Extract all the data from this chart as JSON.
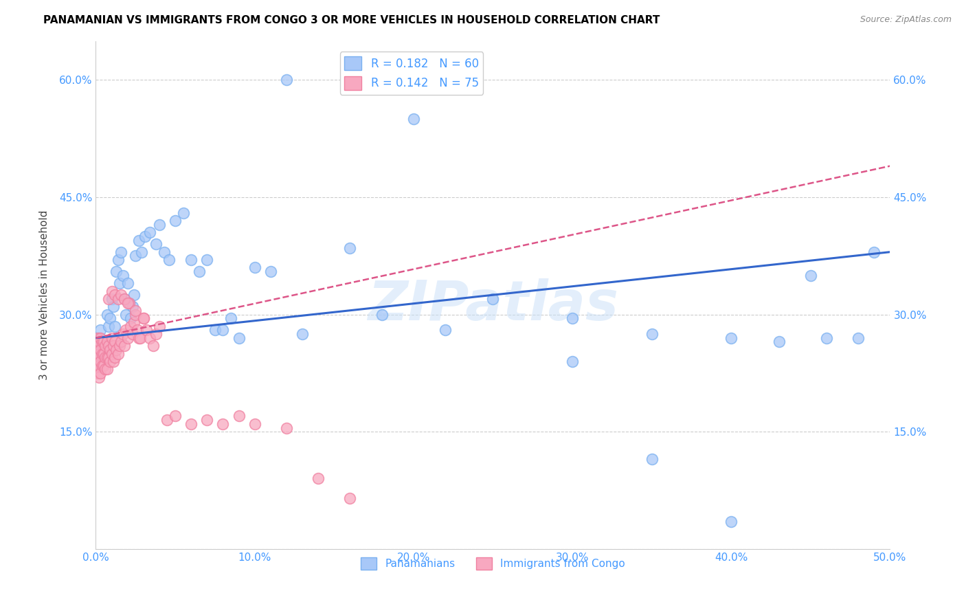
{
  "title": "PANAMANIAN VS IMMIGRANTS FROM CONGO 3 OR MORE VEHICLES IN HOUSEHOLD CORRELATION CHART",
  "source": "Source: ZipAtlas.com",
  "ylabel": "3 or more Vehicles in Household",
  "xlim": [
    0.0,
    0.5
  ],
  "ylim": [
    0.0,
    0.65
  ],
  "xticks": [
    0.0,
    0.1,
    0.2,
    0.3,
    0.4,
    0.5
  ],
  "xticklabels": [
    "0.0%",
    "10.0%",
    "20.0%",
    "30.0%",
    "40.0%",
    "50.0%"
  ],
  "yticks": [
    0.0,
    0.15,
    0.3,
    0.45,
    0.6
  ],
  "yticklabels": [
    "",
    "15.0%",
    "30.0%",
    "45.0%",
    "60.0%"
  ],
  "series1_color": "#a8c8f8",
  "series2_color": "#f8a8c0",
  "series1_edge": "#7ab0f0",
  "series2_edge": "#f080a0",
  "trendline1_color": "#3366cc",
  "trendline2_color": "#dd5588",
  "watermark": "ZIPatlas",
  "watermark_color": "#c8dff8",
  "background_color": "#ffffff",
  "grid_color": "#cccccc",
  "axis_color": "#4499ff",
  "title_color": "#000000",
  "source_color": "#888888",
  "trendline1_start_y": 0.27,
  "trendline1_end_y": 0.38,
  "trendline2_start_y": 0.27,
  "trendline2_end_y": 0.49,
  "panamanian_x": [
    0.002,
    0.003,
    0.004,
    0.005,
    0.007,
    0.008,
    0.009,
    0.01,
    0.011,
    0.012,
    0.013,
    0.014,
    0.015,
    0.016,
    0.017,
    0.018,
    0.019,
    0.02,
    0.021,
    0.022,
    0.023,
    0.024,
    0.025,
    0.027,
    0.029,
    0.031,
    0.034,
    0.038,
    0.04,
    0.043,
    0.046,
    0.05,
    0.055,
    0.06,
    0.065,
    0.07,
    0.075,
    0.08,
    0.085,
    0.09,
    0.1,
    0.11,
    0.12,
    0.13,
    0.16,
    0.18,
    0.22,
    0.3,
    0.35,
    0.4,
    0.45,
    0.48,
    0.2,
    0.25,
    0.3,
    0.35,
    0.4,
    0.43,
    0.46,
    0.49
  ],
  "panamanian_y": [
    0.27,
    0.28,
    0.26,
    0.25,
    0.3,
    0.285,
    0.295,
    0.32,
    0.31,
    0.285,
    0.355,
    0.37,
    0.34,
    0.38,
    0.35,
    0.32,
    0.3,
    0.34,
    0.315,
    0.295,
    0.31,
    0.325,
    0.375,
    0.395,
    0.38,
    0.4,
    0.405,
    0.39,
    0.415,
    0.38,
    0.37,
    0.42,
    0.43,
    0.37,
    0.355,
    0.37,
    0.28,
    0.28,
    0.295,
    0.27,
    0.36,
    0.355,
    0.6,
    0.275,
    0.385,
    0.3,
    0.28,
    0.295,
    0.275,
    0.27,
    0.35,
    0.27,
    0.55,
    0.32,
    0.24,
    0.115,
    0.035,
    0.265,
    0.27,
    0.38
  ],
  "congo_x": [
    0.001,
    0.001,
    0.001,
    0.001,
    0.002,
    0.002,
    0.002,
    0.002,
    0.003,
    0.003,
    0.003,
    0.003,
    0.004,
    0.004,
    0.004,
    0.005,
    0.005,
    0.005,
    0.006,
    0.006,
    0.006,
    0.007,
    0.007,
    0.007,
    0.008,
    0.008,
    0.009,
    0.009,
    0.01,
    0.01,
    0.011,
    0.011,
    0.012,
    0.012,
    0.013,
    0.014,
    0.015,
    0.016,
    0.017,
    0.018,
    0.019,
    0.02,
    0.021,
    0.022,
    0.023,
    0.024,
    0.025,
    0.026,
    0.027,
    0.028,
    0.03,
    0.032,
    0.034,
    0.036,
    0.038,
    0.04,
    0.045,
    0.05,
    0.06,
    0.07,
    0.08,
    0.09,
    0.1,
    0.12,
    0.14,
    0.16,
    0.008,
    0.01,
    0.012,
    0.014,
    0.016,
    0.018,
    0.02,
    0.025,
    0.03
  ],
  "congo_y": [
    0.27,
    0.255,
    0.24,
    0.225,
    0.265,
    0.25,
    0.235,
    0.22,
    0.27,
    0.255,
    0.24,
    0.225,
    0.265,
    0.25,
    0.235,
    0.265,
    0.25,
    0.235,
    0.26,
    0.245,
    0.23,
    0.265,
    0.245,
    0.23,
    0.26,
    0.245,
    0.255,
    0.24,
    0.27,
    0.25,
    0.26,
    0.24,
    0.265,
    0.245,
    0.255,
    0.25,
    0.26,
    0.265,
    0.275,
    0.26,
    0.28,
    0.27,
    0.315,
    0.285,
    0.275,
    0.29,
    0.3,
    0.28,
    0.27,
    0.27,
    0.295,
    0.28,
    0.27,
    0.26,
    0.275,
    0.285,
    0.165,
    0.17,
    0.16,
    0.165,
    0.16,
    0.17,
    0.16,
    0.155,
    0.09,
    0.065,
    0.32,
    0.33,
    0.325,
    0.32,
    0.325,
    0.32,
    0.315,
    0.305,
    0.295
  ]
}
